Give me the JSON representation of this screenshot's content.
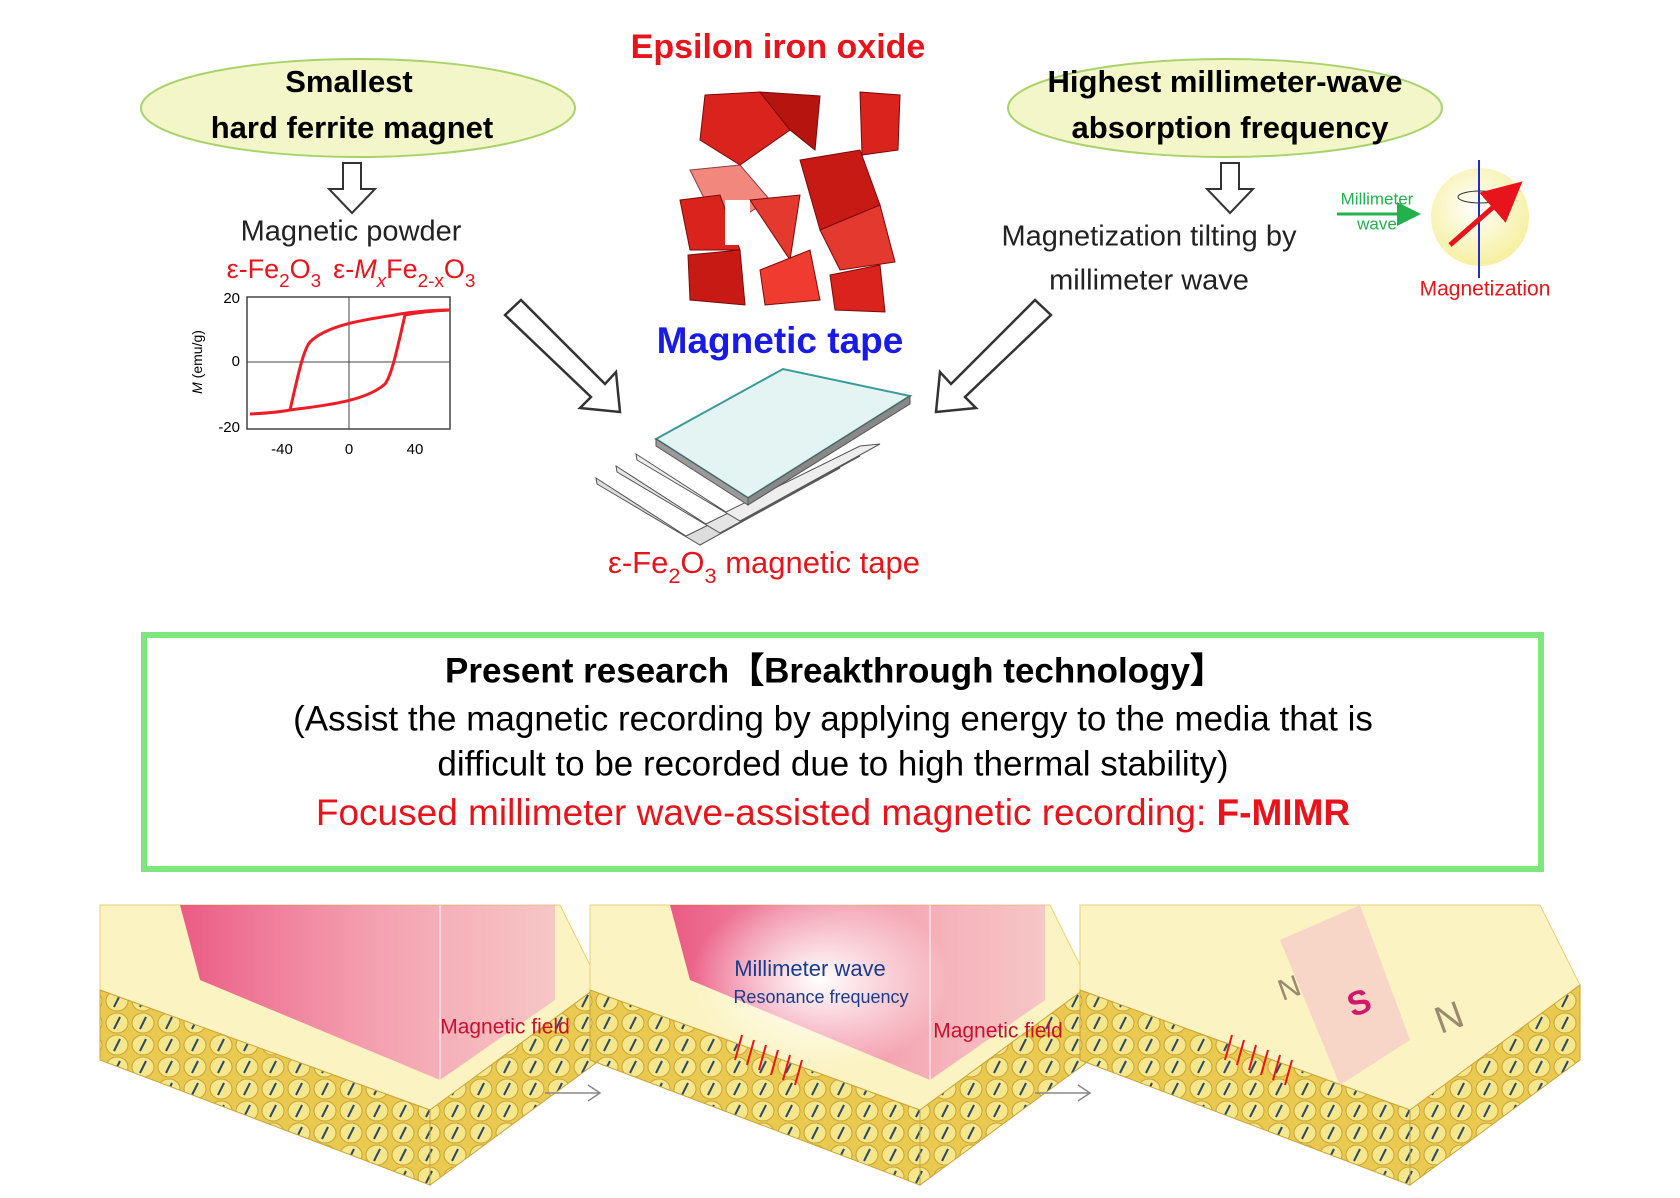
{
  "header": {
    "title": "Epsilon iron oxide",
    "subtitle": "Magnetic tape"
  },
  "left": {
    "bubble": [
      "Smallest",
      "hard ferrite magnet"
    ],
    "label": "Magnetic powder",
    "formula": [
      "ε-Fe",
      "2",
      "O",
      "3",
      "ε-",
      "M",
      "x",
      "Fe",
      "2-x",
      "O",
      "3"
    ],
    "plot": {
      "ylabel": [
        "M",
        " (emu/g)"
      ],
      "yticks": [
        "20",
        "0",
        "-20"
      ],
      "xticks": [
        "-40",
        "0",
        "40"
      ]
    }
  },
  "tape": {
    "caption": [
      "ε-Fe",
      "2",
      "O",
      "3",
      " magnetic tape"
    ]
  },
  "right": {
    "bubble": [
      "Highest millimeter-wave",
      "absorption frequency"
    ],
    "label": [
      "Magnetization tilting by",
      "millimeter wave"
    ],
    "inset": {
      "wave": [
        "Millimeter",
        "wave"
      ],
      "magnetization": "Magnetization"
    }
  },
  "research": {
    "title": "Present research【Breakthrough technology】",
    "description": [
      "(Assist the magnetic recording by applying energy to the media that is",
      "difficult to be recorded due to high thermal stability)"
    ],
    "method": "Focused millimeter wave-assisted magnetic recording: ",
    "acronym": "F-MIMR"
  },
  "panels": {
    "first": {
      "field": "Magnetic field"
    },
    "second": {
      "wave": "Millimeter wave",
      "resonance": "Resonance frequency",
      "field": "Magnetic field"
    },
    "third": {
      "poles": [
        "N",
        "S",
        "N"
      ]
    }
  }
}
